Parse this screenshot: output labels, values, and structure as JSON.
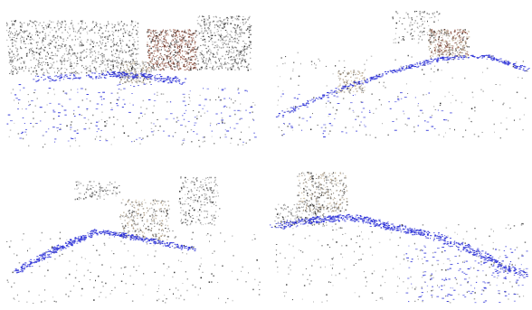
{
  "figure": {
    "panels": [
      {
        "id": "view-1",
        "description_visible": false
      },
      {
        "id": "view-2",
        "description_visible": false
      },
      {
        "id": "view-3",
        "description_visible": false
      },
      {
        "id": "view-4",
        "description_visible": false
      }
    ],
    "colors": {
      "background": "#ffffff",
      "camera_trajectory": "#2a2fd6",
      "building_brick": "#8a4a3a",
      "building_stone": "#b9a58a",
      "point_dark": "#2b2b2b",
      "point_gray": "#8c8c8c"
    }
  }
}
